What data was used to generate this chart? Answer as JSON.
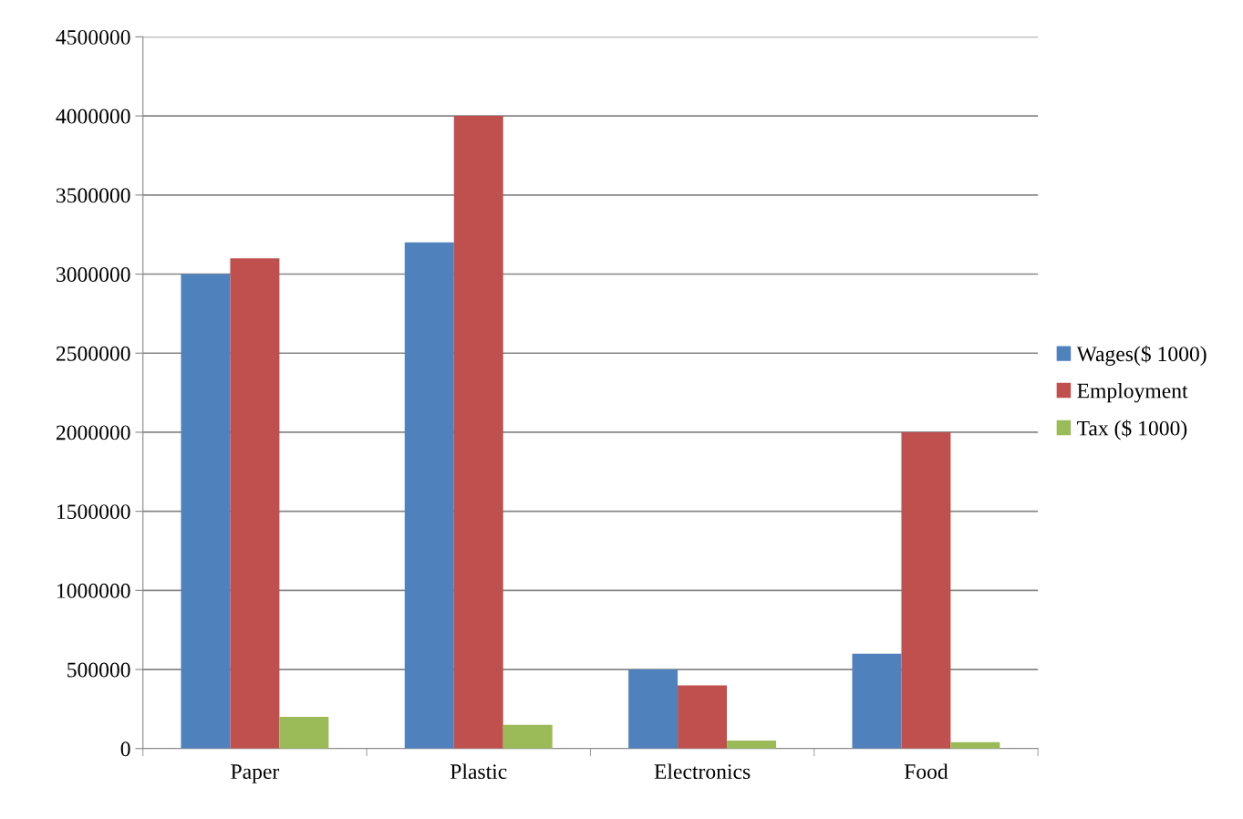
{
  "chart_data": {
    "type": "bar",
    "categories": [
      "Paper",
      "Plastic",
      "Electronics",
      "Food"
    ],
    "series": [
      {
        "name": "Wages($ 1000)",
        "color": "#4f81bd",
        "values": [
          3000000,
          3200000,
          500000,
          600000
        ]
      },
      {
        "name": "Employment",
        "color": "#c0504d",
        "values": [
          3100000,
          4000000,
          400000,
          2000000
        ]
      },
      {
        "name": "Tax ($ 1000)",
        "color": "#9bbb59",
        "values": [
          200000,
          150000,
          50000,
          40000
        ]
      }
    ],
    "ylim": [
      0,
      4500000
    ],
    "yticks": [
      0,
      500000,
      1000000,
      1500000,
      2000000,
      2500000,
      3000000,
      3500000,
      4000000,
      4500000
    ],
    "grid": "y",
    "legend": "right"
  }
}
